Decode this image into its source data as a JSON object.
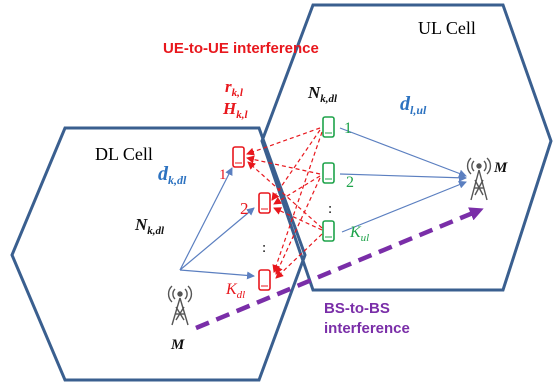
{
  "cells": {
    "ul_title": "UL Cell",
    "dl_title": "DL Cell"
  },
  "interference": {
    "ue_to_ue": "UE-to-UE interference",
    "bs_to_bs_line1": "BS-to-BS",
    "bs_to_bs_line2": "interference"
  },
  "symbols": {
    "r_kl": "r",
    "r_kl_sub": "k,l",
    "H_kl": "H",
    "H_kl_sub": "k,l",
    "N_kdl_ul": "N",
    "N_kdl_ul_sub": "k,dl",
    "N_kdl_dl": "N",
    "N_kdl_dl_sub": "k,dl",
    "d_kdl": "d",
    "d_kdl_sub": "k,dl",
    "d_lul": "d",
    "d_lul_sub": "l,ul",
    "M_dl": "M",
    "M_ul": "M"
  },
  "ue_labels": {
    "ul_1": "1",
    "ul_2": "2",
    "ul_dots": ":",
    "ul_K": "K",
    "ul_K_sub": "ul",
    "dl_1": "1",
    "dl_2": "2",
    "dl_dots": ":",
    "dl_K": "K",
    "dl_K_sub": "dl"
  },
  "colors": {
    "hexagon": "#3a5f8f",
    "red": "#e8171d",
    "green": "#1ea34a",
    "blue": "#2c72c0",
    "purple": "#7a2ea8",
    "arrow_blue": "#5b7fc0"
  }
}
